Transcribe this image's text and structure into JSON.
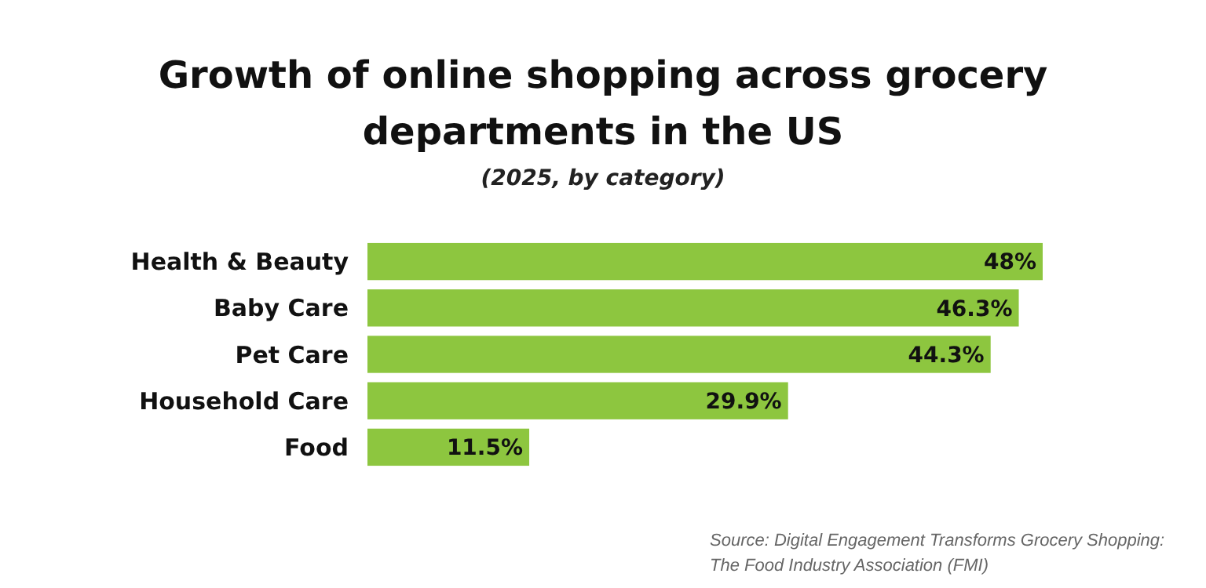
{
  "chart_data": {
    "type": "bar",
    "orientation": "horizontal",
    "title": "Growth of online shopping across grocery departments in the US",
    "subtitle": "(2025, by category)",
    "categories": [
      "Health & Beauty",
      "Baby Care",
      "Pet Care",
      "Household Care",
      "Food"
    ],
    "values": [
      48,
      46.3,
      44.3,
      29.9,
      11.5
    ],
    "value_labels": [
      "48%",
      "46.3%",
      "44.3%",
      "29.9%",
      "11.5%"
    ],
    "color": "#8dc63f",
    "annotations": [
      "Source: Digital Engagement Transforms Grocery Shopping: The Food Industry Association (FMI)"
    ]
  }
}
